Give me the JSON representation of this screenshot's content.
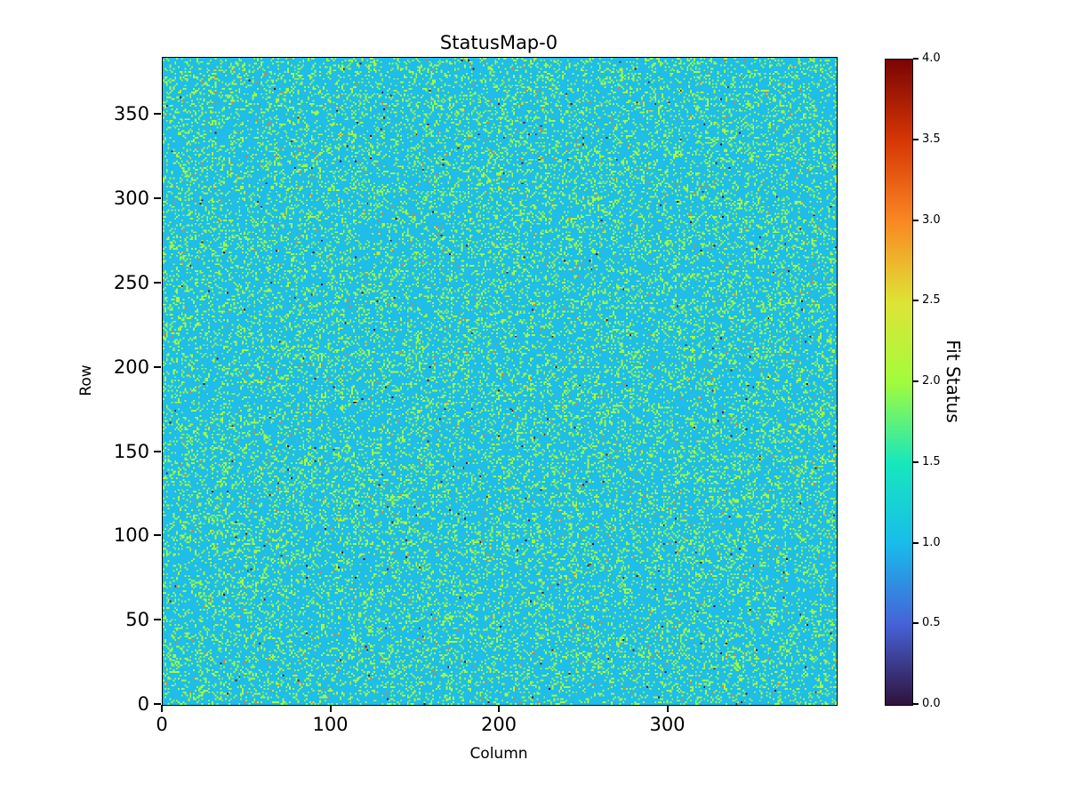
{
  "figure": {
    "background": "#ffffff"
  },
  "chart_data": {
    "type": "heatmap",
    "title": "StatusMap-0",
    "xlabel": "Column",
    "ylabel": "Row",
    "colorbar_label": "Fit Status",
    "x_ticks": [
      0,
      100,
      200,
      300
    ],
    "y_ticks": [
      0,
      50,
      100,
      150,
      200,
      250,
      300,
      350
    ],
    "x_range": [
      0,
      400
    ],
    "y_range": [
      0,
      384
    ],
    "colorbar_ticks": [
      "0.0",
      "0.5",
      "1.0",
      "1.5",
      "2.0",
      "2.5",
      "3.0",
      "3.5",
      "4.0"
    ],
    "value_range": [
      0,
      4
    ],
    "grid": {
      "cols": 400,
      "rows": 384
    },
    "colormap": "turbo",
    "colormap_stops": [
      "#30123b",
      "#4662d8",
      "#18bceb",
      "#17e7bc",
      "#a2fc3c",
      "#dfe336",
      "#fa8723",
      "#d63605",
      "#7a0403"
    ],
    "status_values": [
      0,
      1,
      2,
      3,
      4
    ],
    "status_colors": [
      "#30123b",
      "#1fbde8",
      "#a2fc3c",
      "#f97918",
      "#7a0403"
    ],
    "status_weights": [
      0.0012,
      0.8158,
      0.178,
      0.004,
      0.001
    ],
    "legend_position": "right-colorbar",
    "grid_lines": "off",
    "seed": 42
  }
}
